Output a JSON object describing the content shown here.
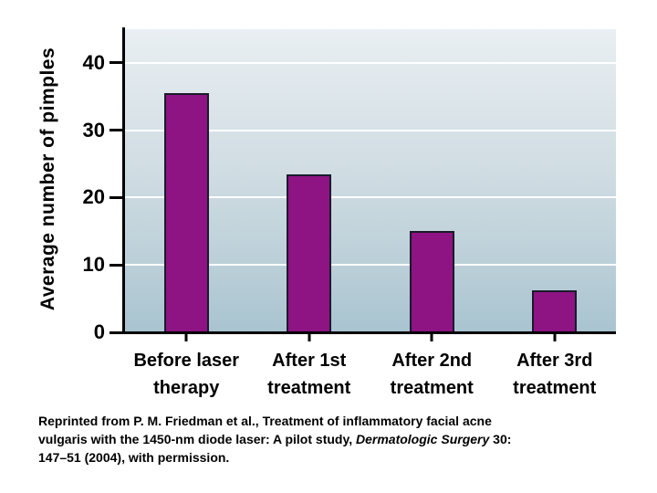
{
  "chart_data": {
    "type": "bar",
    "title": "",
    "ylabel": "Average number of pimples",
    "xlabel": "",
    "categories": [
      [
        "Before laser",
        "therapy"
      ],
      [
        "After 1st",
        "treatment"
      ],
      [
        "After 2nd",
        "treatment"
      ],
      [
        "After 3rd",
        "treatment"
      ]
    ],
    "values": [
      35.5,
      23.5,
      15,
      6.3
    ],
    "yticks": [
      0,
      10,
      20,
      30,
      40
    ],
    "ylim": [
      0,
      45
    ],
    "grid": "horizontal white gridlines at each labeled y tick",
    "legend": "none",
    "colors": {
      "bar_fill": "#8e1383",
      "bar_border": "#1a1a2c",
      "axis": "#000000",
      "plot_bg_top": "#e9eff2",
      "plot_bg_bottom": "#a8c4d0",
      "gridline": "#ffffff",
      "page_bg": "#ffffff"
    }
  },
  "caption": {
    "lines": [
      [
        {
          "text": "Reprinted from P. M. Friedman et al., Treatment of inflammatory facial acne",
          "italic": false
        }
      ],
      [
        {
          "text": "vulgaris with the 1450-nm diode laser: A pilot study, ",
          "italic": false
        },
        {
          "text": "Dermatologic Surgery",
          "italic": true
        },
        {
          "text": " 30:",
          "italic": false
        }
      ],
      [
        {
          "text": "147–51 (2004), with permission.",
          "italic": false
        }
      ]
    ]
  }
}
